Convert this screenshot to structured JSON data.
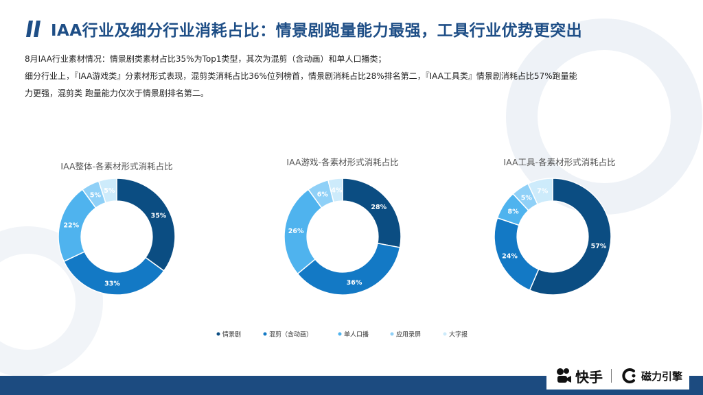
{
  "page": {
    "title": "IAA行业及细分行业消耗占比：情景剧跑量能力最强，工具行业优势更突出",
    "desc_line1": "8月IAA行业素材情况：情景剧类素材占比35%为Top1类型，其次为混剪（含动画）和单人口播类；",
    "desc_line2": "细分行业上，『IAA游戏类』分素材形式表现，混剪类消耗占比36%位列榜首，情景剧消耗占比28%排名第二，『IAA工具类』情景剧消耗占比57%跑量能",
    "desc_line3": "力更强，混剪类 跑量能力仅次于情景剧排名第二。"
  },
  "brand": {
    "name": "快手",
    "name2": "磁力引擎"
  },
  "colors": {
    "title": "#1e4e86",
    "bar": "#1c4b80",
    "series": [
      "#0b4d82",
      "#1379c5",
      "#4fb3ee",
      "#8fd0f7",
      "#cdebfb"
    ]
  },
  "chart_data": [
    {
      "type": "pie",
      "title": "IAA整体-各素材形式消耗占比",
      "categories": [
        "情景剧",
        "混剪（含动画）",
        "单人口播",
        "应用录屏",
        "大字报"
      ],
      "values": [
        35,
        33,
        22,
        5,
        5
      ],
      "labels": [
        "35%",
        "33%",
        "22%",
        "5%",
        "5%"
      ]
    },
    {
      "type": "pie",
      "title": "IAA游戏-各素材形式消耗占比",
      "categories": [
        "情景剧",
        "混剪（含动画）",
        "单人口播",
        "应用录屏",
        "大字报"
      ],
      "values": [
        28,
        36,
        26,
        6,
        4
      ],
      "labels": [
        "28%",
        "36%",
        "26%",
        "6%",
        "4%"
      ]
    },
    {
      "type": "pie",
      "title": "IAA工具-各素材形式消耗占比",
      "categories": [
        "情景剧",
        "混剪（含动画）",
        "单人口播",
        "应用录屏",
        "大字报"
      ],
      "values": [
        57,
        24,
        8,
        5,
        7
      ],
      "labels": [
        "57%",
        "24%",
        "8%",
        "5%",
        "7%"
      ]
    }
  ],
  "legend": {
    "position": "bottom",
    "items": [
      "情景剧",
      "混剪（含动画）",
      "单人口播",
      "应用录屏",
      "大字报"
    ]
  }
}
